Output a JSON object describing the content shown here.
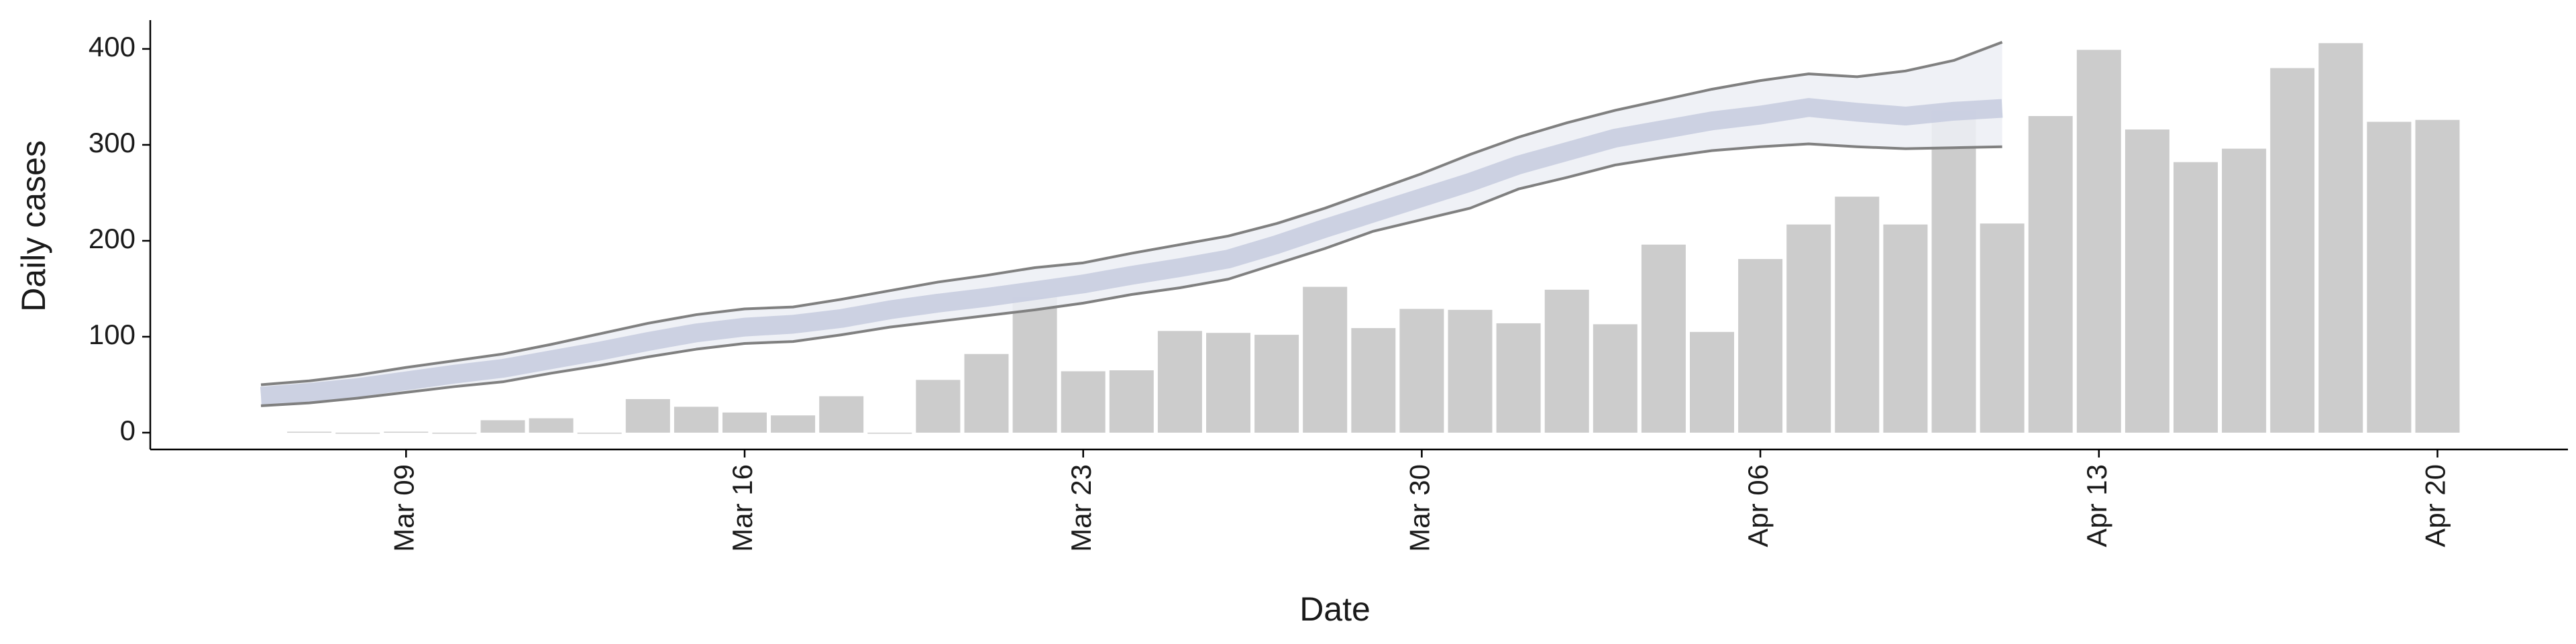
{
  "chart_data": {
    "type": "bar",
    "xlabel": "Date",
    "ylabel": "Daily cases",
    "categories": [
      "Mar 06",
      "Mar 07",
      "Mar 08",
      "Mar 09",
      "Mar 10",
      "Mar 11",
      "Mar 12",
      "Mar 13",
      "Mar 14",
      "Mar 15",
      "Mar 16",
      "Mar 17",
      "Mar 18",
      "Mar 19",
      "Mar 20",
      "Mar 21",
      "Mar 22",
      "Mar 23",
      "Mar 24",
      "Mar 25",
      "Mar 26",
      "Mar 27",
      "Mar 28",
      "Mar 29",
      "Mar 30",
      "Mar 31",
      "Apr 01",
      "Apr 02",
      "Apr 03",
      "Apr 04",
      "Apr 05",
      "Apr 06",
      "Apr 07",
      "Apr 08",
      "Apr 09",
      "Apr 10",
      "Apr 11",
      "Apr 12",
      "Apr 13",
      "Apr 14",
      "Apr 15",
      "Apr 16",
      "Apr 17",
      "Apr 18",
      "Apr 19",
      "Apr 20"
    ],
    "tick_categories": [
      3,
      10,
      17,
      24,
      31,
      38,
      45
    ],
    "values": [
      null,
      1,
      0,
      1,
      0,
      13,
      15,
      0,
      35,
      27,
      21,
      18,
      38,
      0,
      55,
      82,
      142,
      64,
      65,
      106,
      104,
      102,
      152,
      109,
      129,
      128,
      114,
      149,
      113,
      196,
      105,
      181,
      217,
      246,
      217,
      336,
      218,
      330,
      399,
      316,
      282,
      296,
      380,
      406,
      324,
      326
    ],
    "color": "#cccccc",
    "band": {
      "color": "#eceef4",
      "line_color": "#808080",
      "upper": [
        50,
        54,
        60,
        68,
        75,
        82,
        92,
        103,
        114,
        123,
        129,
        131,
        139,
        148,
        157,
        164,
        172,
        177,
        187,
        196,
        205,
        218,
        234,
        252,
        270,
        290,
        308,
        323,
        336,
        347,
        358,
        367,
        374,
        371,
        377,
        388,
        407,
        null,
        null,
        null,
        null,
        null,
        null,
        null,
        null,
        null
      ],
      "lower": [
        28,
        31,
        36,
        42,
        48,
        53,
        62,
        70,
        79,
        87,
        93,
        95,
        102,
        110,
        116,
        122,
        128,
        135,
        144,
        151,
        160,
        176,
        192,
        210,
        222,
        234,
        254,
        266,
        279,
        287,
        294,
        298,
        301,
        298,
        296,
        297,
        298,
        null,
        null,
        null,
        null,
        null,
        null,
        null,
        null,
        null
      ]
    },
    "median": {
      "color": "#c8cde0",
      "values": [
        38,
        42,
        47,
        54,
        61,
        67,
        76,
        85,
        95,
        104,
        110,
        113,
        119,
        128,
        135,
        141,
        148,
        155,
        164,
        172,
        181,
        196,
        213,
        229,
        245,
        261,
        279,
        293,
        307,
        316,
        325,
        331,
        339,
        334,
        330,
        335,
        338,
        null,
        null,
        null,
        null,
        null,
        null,
        null,
        null,
        null
      ]
    },
    "ylim": [
      -17.5,
      430
    ],
    "yticks": [
      0,
      100,
      200,
      300,
      400
    ]
  }
}
